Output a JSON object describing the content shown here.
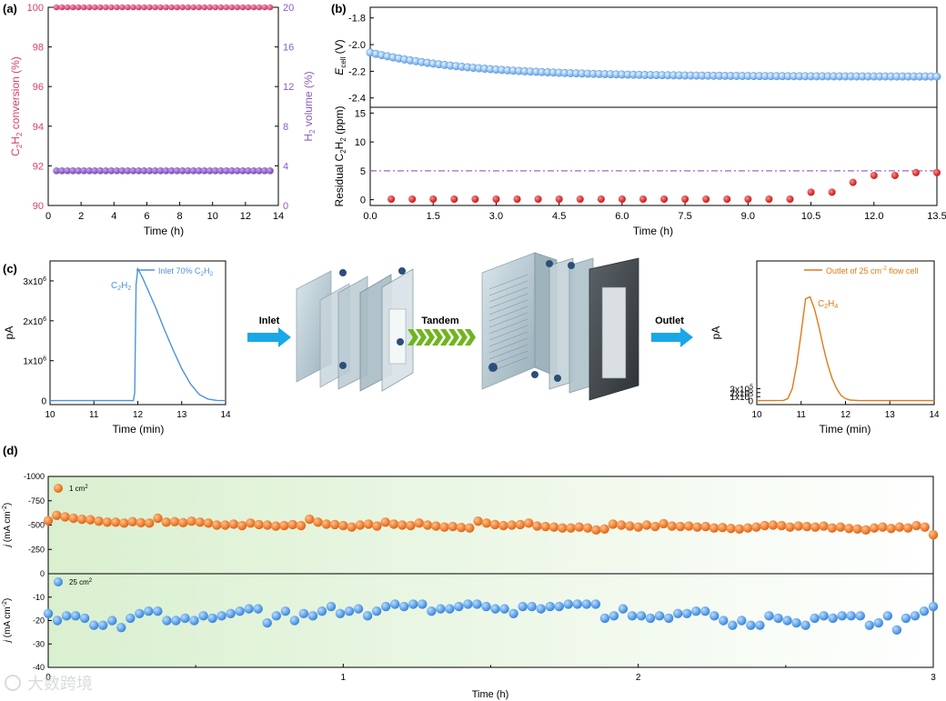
{
  "panels": {
    "a": {
      "label": "(a)"
    },
    "b": {
      "label": "(b)"
    },
    "c": {
      "label": "(c)"
    },
    "d": {
      "label": "(d)"
    }
  },
  "colors": {
    "conversion": "#d63e6a",
    "h2_volume": "#8a5cc4",
    "ecell": "#5aa0ea",
    "residual": "#d91f1f",
    "inlet_line": "#4c93dd",
    "outlet_line": "#e07a17",
    "d_top": "#f0741e",
    "d_bottom": "#4a90e2",
    "arrow": "#1aa7e8",
    "tandem": "#6fb51f",
    "threshold": "#a066c8"
  },
  "device_labels": {
    "inlet": "Inlet",
    "tandem": "Tandem",
    "outlet": "Outlet"
  },
  "watermark": "大数跨境",
  "chart_data": [
    {
      "id": "a",
      "type": "scatter",
      "xlabel": "Time (h)",
      "xlim": [
        0,
        14
      ],
      "xticks": [
        "0",
        "2",
        "4",
        "6",
        "8",
        "10",
        "12",
        "14"
      ],
      "ylabel_left": {
        "main": "C",
        "s1": "2",
        "m2": "H",
        "s2": "2",
        "rest": " conversion (%)"
      },
      "ylabel_right": {
        "main": "H",
        "s1": "2",
        "rest": " volume (%)"
      },
      "ylim_left": [
        90,
        100
      ],
      "yticks_left": [
        "90",
        "92",
        "94",
        "96",
        "98",
        "100"
      ],
      "ylim_right": [
        0,
        20
      ],
      "yticks_right": [
        "0",
        "4",
        "8",
        "12",
        "16",
        "20"
      ],
      "series": [
        {
          "axis": "left",
          "x_range": [
            0.5,
            13.5
          ],
          "n": 40,
          "value": 100.0
        },
        {
          "axis": "right",
          "x_range": [
            0.5,
            13.5
          ],
          "n": 40,
          "value": 3.5
        }
      ]
    },
    {
      "id": "b_top",
      "type": "scatter",
      "ylabel": {
        "main": "E",
        "sub": "cell",
        "rest": " (V)"
      },
      "ylim": [
        -2.47,
        -1.72
      ],
      "yticks": [
        "-1.8",
        "-2.0",
        "-2.2",
        "-2.4"
      ],
      "xlim": [
        0,
        13.5
      ],
      "series": [
        {
          "x_range": [
            0,
            13.5
          ],
          "n": 100,
          "start": -2.06,
          "end": -2.24
        }
      ]
    },
    {
      "id": "b_bottom",
      "type": "scatter",
      "xlabel": "Time (h)",
      "xlim": [
        0,
        13.5
      ],
      "xticks": [
        "0.0",
        "1.5",
        "3.0",
        "4.5",
        "6.0",
        "7.5",
        "9.0",
        "10.5",
        "12.0",
        "13.5"
      ],
      "ylabel": {
        "main": "Residual C",
        "s1": "2",
        "m2": "H",
        "s2": "2",
        "rest": " (ppm)"
      },
      "ylim": [
        -1,
        16
      ],
      "yticks": [
        "0",
        "5",
        "10",
        "15"
      ],
      "threshold": 5,
      "x": [
        0.5,
        1.0,
        1.5,
        2.0,
        2.5,
        3.0,
        3.5,
        4.0,
        4.5,
        5.0,
        5.5,
        6.0,
        6.5,
        7.0,
        7.5,
        8.0,
        8.5,
        9.0,
        9.5,
        10.0,
        10.5,
        11.0,
        11.5,
        12.0,
        12.5,
        13.0,
        13.5
      ],
      "y": [
        0.1,
        0.1,
        0.1,
        0.1,
        0.1,
        0.1,
        0.1,
        0.1,
        0.1,
        0.1,
        0.1,
        0.1,
        0.1,
        0.1,
        0.1,
        0.1,
        0.1,
        0.1,
        0.1,
        0.1,
        1.3,
        1.3,
        3.0,
        4.2,
        4.2,
        4.7,
        4.7
      ]
    },
    {
      "id": "c_inlet",
      "type": "line",
      "xlabel": "Time (min)",
      "ylabel": "pA",
      "xlim": [
        10,
        14
      ],
      "xticks": [
        "10",
        "11",
        "12",
        "13",
        "14"
      ],
      "ylim": [
        -100000,
        3500000
      ],
      "yticks": [
        "0",
        "1x10",
        "2x10",
        "3x10"
      ],
      "ytick_sup": "6",
      "legend": {
        "pre": "Inlet 70% C",
        "s1": "2",
        "m2": "H",
        "s2": "2"
      },
      "peak_label": {
        "main": "C",
        "s1": "2",
        "m2": "H",
        "s2": "2"
      },
      "x": [
        10,
        11.9,
        11.93,
        11.96,
        12.0,
        12.1,
        12.2,
        12.4,
        12.6,
        12.8,
        13.0,
        13.2,
        13.4,
        13.6,
        13.8,
        14.0
      ],
      "y": [
        0,
        0,
        200000,
        2900000,
        3300000,
        3100000,
        2850000,
        2350000,
        1800000,
        1280000,
        800000,
        420000,
        150000,
        40000,
        5000,
        0
      ]
    },
    {
      "id": "c_outlet",
      "type": "line",
      "xlabel": "Time (min)",
      "ylabel": "pA",
      "xlim": [
        10,
        14
      ],
      "xticks": [
        "10",
        "11",
        "12",
        "13",
        "14"
      ],
      "ylim": [
        -100000,
        3500000
      ],
      "yticks": [
        "0",
        "1x10",
        "2x10",
        "3x10"
      ],
      "ytick_sup": "5",
      "legend": {
        "pre": "Outlet of 25 cm",
        "sup": "-2",
        "post": " flow cell"
      },
      "peak_label": {
        "main": "C",
        "s1": "2",
        "m2": "H",
        "s2": "4"
      },
      "x": [
        10,
        10.6,
        10.7,
        10.8,
        10.9,
        11.0,
        11.1,
        11.2,
        11.3,
        11.4,
        11.5,
        11.6,
        11.7,
        11.8,
        11.9,
        12.0,
        12.1,
        12.3,
        14.0
      ],
      "y": [
        0,
        5000,
        50000,
        300000,
        900000,
        1700000,
        2550000,
        2600000,
        2300000,
        1850000,
        1350000,
        900000,
        550000,
        300000,
        130000,
        50000,
        15000,
        0,
        0
      ]
    },
    {
      "id": "d",
      "type": "scatter",
      "xlabel": "Time (h)",
      "xlim": [
        0,
        3
      ],
      "xticks": [
        "0",
        "1",
        "2",
        "3"
      ],
      "top": {
        "ylabel": {
          "main": "j",
          "rest": " (mA cm",
          "sup": "-2",
          "end": ")"
        },
        "ylim": [
          0,
          -1000
        ],
        "yticks": [
          "-1000",
          "-750",
          "-500",
          "-250",
          "0"
        ],
        "legend": {
          "pre": "1 cm",
          "sup": "2"
        },
        "y": [
          -545,
          -600,
          -585,
          -570,
          -560,
          -555,
          -540,
          -530,
          -530,
          -520,
          -535,
          -525,
          -520,
          -570,
          -530,
          -535,
          -525,
          -540,
          -530,
          -520,
          -500,
          -500,
          -510,
          -495,
          -520,
          -505,
          -500,
          -490,
          -495,
          -505,
          -495,
          -560,
          -530,
          -510,
          -505,
          -495,
          -480,
          -500,
          -510,
          -490,
          -530,
          -510,
          -500,
          -495,
          -520,
          -500,
          -490,
          -480,
          -485,
          -475,
          -470,
          -540,
          -520,
          -505,
          -495,
          -500,
          -505,
          -520,
          -490,
          -485,
          -480,
          -470,
          -470,
          -480,
          -470,
          -450,
          -460,
          -510,
          -500,
          -490,
          -480,
          -500,
          -485,
          -515,
          -490,
          -485,
          -490,
          -480,
          -485,
          -470,
          -475,
          -465,
          -460,
          -470,
          -480,
          -495,
          -500,
          -495,
          -480,
          -490,
          -485,
          -480,
          -490,
          -470,
          -480,
          -465,
          -460,
          -450,
          -470,
          -480,
          -465,
          -480,
          -470,
          -495,
          -480,
          -400
        ]
      },
      "bottom": {
        "ylabel": {
          "main": "j",
          "rest": " (mA cm",
          "sup": "-2",
          "end": ")"
        },
        "ylim": [
          -40,
          0
        ],
        "yticks": [
          "-10",
          "-20",
          "-30",
          "-40"
        ],
        "legend": {
          "pre": "25 cm",
          "sup": "2"
        },
        "y": [
          -17,
          -20,
          -18,
          -18,
          -19,
          -22,
          -22,
          -20,
          -23,
          -19,
          -17,
          -16,
          -16,
          -20,
          -20,
          -19,
          -20,
          -18,
          -19,
          -18,
          -17,
          -16,
          -15,
          -15,
          -21,
          -18,
          -16,
          -20,
          -17,
          -18,
          -16,
          -14,
          -17,
          -16,
          -15,
          -18,
          -16,
          -14,
          -13,
          -14,
          -13,
          -13,
          -16,
          -15,
          -15,
          -14,
          -13,
          -13,
          -14,
          -15,
          -15,
          -17,
          -14,
          -14,
          -15,
          -14,
          -14,
          -13,
          -13,
          -13,
          -13,
          -19,
          -18,
          -15,
          -18,
          -18,
          -19,
          -18,
          -19,
          -17,
          -17,
          -16,
          -16,
          -18,
          -20,
          -22,
          -20,
          -22,
          -22,
          -18,
          -19,
          -20,
          -21,
          -22,
          -19,
          -18,
          -19,
          -18,
          -18,
          -18,
          -22,
          -21,
          -18,
          -24,
          -19,
          -18,
          -16,
          -14
        ]
      }
    }
  ]
}
